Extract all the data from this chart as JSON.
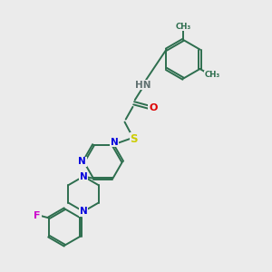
{
  "bg_color": "#ebebeb",
  "bond_color": "#2d6e4e",
  "N_color": "#0000dd",
  "O_color": "#dd0000",
  "S_color": "#cccc00",
  "F_color": "#cc00cc",
  "H_color": "#607070",
  "font_size": 7.5,
  "bond_lw": 1.4,
  "xlim": [
    0,
    10
  ],
  "ylim": [
    0,
    10
  ]
}
